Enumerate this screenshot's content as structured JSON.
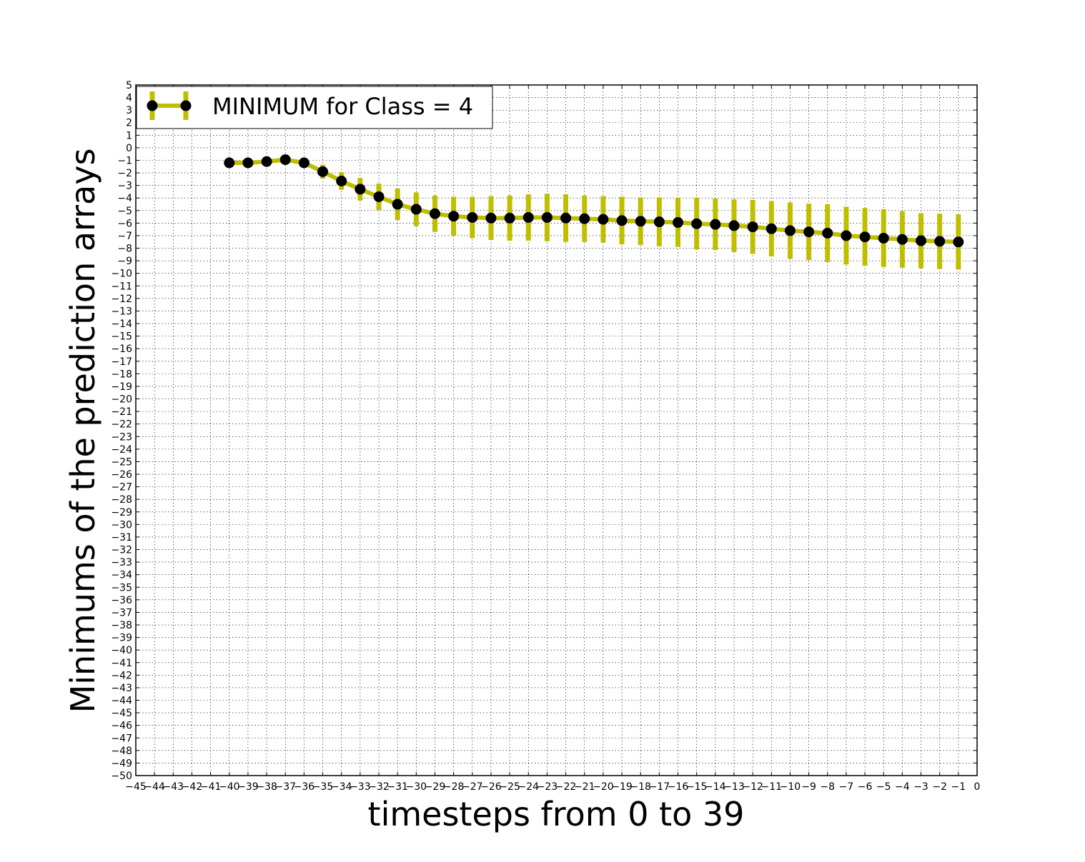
{
  "chart_data": {
    "type": "line",
    "title": "",
    "xlabel": "timesteps from 0 to 39",
    "ylabel": "Minimums of the prediction arrays",
    "xlim": [
      -45,
      0
    ],
    "ylim": [
      -50,
      5
    ],
    "grid": true,
    "legend_position": "upper-left",
    "series": [
      {
        "name": "MINIMUM for Class = 4",
        "line_color": "#bfbf00",
        "marker_color": "#000000",
        "x": [
          -40,
          -39,
          -38,
          -37,
          -36,
          -35,
          -34,
          -33,
          -32,
          -31,
          -30,
          -29,
          -28,
          -27,
          -26,
          -25,
          -24,
          -23,
          -22,
          -21,
          -20,
          -19,
          -18,
          -17,
          -16,
          -15,
          -14,
          -13,
          -12,
          -11,
          -10,
          -9,
          -8,
          -7,
          -6,
          -5,
          -4,
          -3,
          -2,
          -1
        ],
        "y": [
          -1.2,
          -1.2,
          -1.1,
          -0.95,
          -1.2,
          -1.9,
          -2.65,
          -3.3,
          -3.9,
          -4.5,
          -4.9,
          -5.25,
          -5.45,
          -5.55,
          -5.6,
          -5.6,
          -5.55,
          -5.55,
          -5.6,
          -5.65,
          -5.7,
          -5.8,
          -5.85,
          -5.9,
          -5.95,
          -6.05,
          -6.1,
          -6.2,
          -6.3,
          -6.45,
          -6.6,
          -6.7,
          -6.8,
          -7.0,
          -7.1,
          -7.2,
          -7.3,
          -7.4,
          -7.45,
          -7.5
        ],
        "err": [
          0.15,
          0.15,
          0.15,
          0.15,
          0.15,
          0.55,
          0.7,
          0.9,
          1.05,
          1.25,
          1.35,
          1.45,
          1.55,
          1.65,
          1.75,
          1.8,
          1.85,
          1.9,
          1.9,
          1.85,
          1.85,
          1.9,
          1.9,
          1.95,
          1.95,
          2.05,
          2.05,
          2.1,
          2.15,
          2.2,
          2.25,
          2.25,
          2.3,
          2.3,
          2.3,
          2.3,
          2.25,
          2.2,
          2.2,
          2.2
        ]
      }
    ]
  }
}
